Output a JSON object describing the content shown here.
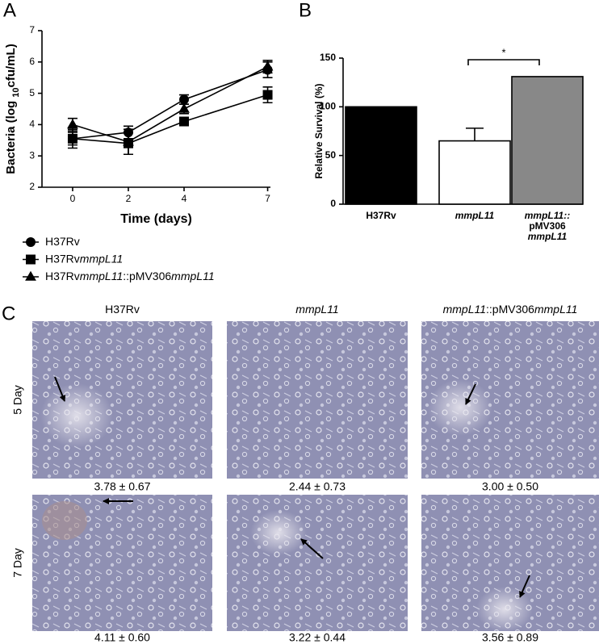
{
  "panels": [
    "A",
    "B",
    "C"
  ],
  "chart_data": [
    {
      "type": "line",
      "x_label": "Time (days)",
      "y_label": [
        {
          "text": "Bacteria (log "
        },
        {
          "text": "10",
          "sub": true
        },
        {
          "text": "cfu/mL)"
        }
      ],
      "x": [
        0,
        2,
        4,
        7
      ],
      "xlim": [
        -1.1,
        7.1
      ],
      "xticks": [
        0,
        2,
        4,
        7
      ],
      "ylim": [
        2,
        7
      ],
      "yticks": [
        2,
        3,
        4,
        5,
        6,
        7
      ],
      "series": [
        {
          "name": [
            {
              "text": "H37Rv"
            }
          ],
          "marker": "circle",
          "color": "#000000",
          "values": [
            3.55,
            3.75,
            4.8,
            5.75
          ],
          "errors": [
            0.2,
            0.2,
            0.15,
            0.25
          ]
        },
        {
          "name": [
            {
              "text": "H37Rv"
            },
            {
              "text": "mmpL11",
              "italic": true
            }
          ],
          "marker": "square",
          "color": "#000000",
          "values": [
            3.55,
            3.4,
            4.1,
            4.95
          ],
          "errors": [
            0.3,
            0.35,
            0.1,
            0.25
          ]
        },
        {
          "name": [
            {
              "text": "H37Rv"
            },
            {
              "text": "mmpL11",
              "italic": true
            },
            {
              "text": "::pMV306"
            },
            {
              "text": "mmpL11",
              "italic": true
            }
          ],
          "marker": "triangle",
          "color": "#000000",
          "values": [
            4.0,
            3.45,
            4.5,
            5.85
          ],
          "errors": [
            0.2,
            0.4,
            0.15,
            0.2
          ]
        }
      ]
    },
    {
      "type": "bar",
      "y_label": "Relative Survival (%)",
      "categories": [
        [
          "H37Rv"
        ],
        [
          "mmpL11"
        ],
        [
          "mmpL11::",
          "pMV306",
          "mmpL11"
        ]
      ],
      "italic_categories": [
        false,
        true,
        true
      ],
      "values": [
        100,
        65,
        131
      ],
      "errors": [
        null,
        13,
        null
      ],
      "colors": [
        "#000000",
        "#ffffff",
        "#888888"
      ],
      "ylim": [
        0,
        150
      ],
      "yticks": [
        0,
        50,
        100,
        150
      ],
      "annotation": "*"
    }
  ],
  "panel_c": {
    "columns": [
      [
        {
          "text": "H37Rv"
        }
      ],
      [
        {
          "text": "mmpL11",
          "italic": true
        }
      ],
      [
        {
          "text": "mmpL11",
          "italic": true
        },
        {
          "text": "::pMV306"
        },
        {
          "text": "mmpL11",
          "italic": true
        }
      ]
    ],
    "rows": [
      {
        "label": "5 Day",
        "captions": [
          "3.78 ± 0.67",
          "2.44 ± 0.73",
          "3.00 ± 0.50"
        ]
      },
      {
        "label": "7 Day",
        "captions": [
          "4.11 ± 0.60",
          "3.22 ± 0.44",
          "3.56 ± 0.89"
        ]
      }
    ]
  }
}
